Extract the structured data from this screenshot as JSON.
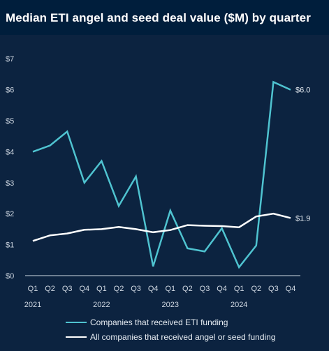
{
  "chart_data": {
    "type": "line",
    "title": "Median ETI angel and seed deal value ($M) by quarter",
    "xlabel": "",
    "ylabel": "",
    "ylim": [
      0,
      7
    ],
    "yticks": [
      "$0",
      "$1",
      "$2",
      "$3",
      "$4",
      "$5",
      "$6",
      "$7"
    ],
    "quarters": [
      "Q1",
      "Q2",
      "Q3",
      "Q4",
      "Q1",
      "Q2",
      "Q3",
      "Q4",
      "Q1",
      "Q2",
      "Q3",
      "Q4",
      "Q1",
      "Q2",
      "Q3",
      "Q4"
    ],
    "years": [
      {
        "label": "2021",
        "index": 0
      },
      {
        "label": "2022",
        "index": 4
      },
      {
        "label": "2023",
        "index": 8
      },
      {
        "label": "2024",
        "index": 12
      }
    ],
    "series": [
      {
        "name": "Companies that received ETI funding",
        "color": "#4fc3d0",
        "values": [
          4.0,
          4.2,
          4.65,
          3.0,
          3.7,
          2.25,
          3.2,
          0.3,
          2.1,
          0.88,
          0.78,
          1.53,
          0.27,
          0.97,
          6.25,
          6.0
        ],
        "end_label": "$6.0"
      },
      {
        "name": "All companies that received angel or seed funding",
        "color": "#ffffff",
        "values": [
          1.12,
          1.3,
          1.36,
          1.48,
          1.5,
          1.57,
          1.5,
          1.4,
          1.47,
          1.63,
          1.61,
          1.6,
          1.56,
          1.91,
          2.0,
          1.86
        ],
        "end_label": "$1.9"
      }
    ],
    "grid": false,
    "legend": "bottom"
  }
}
